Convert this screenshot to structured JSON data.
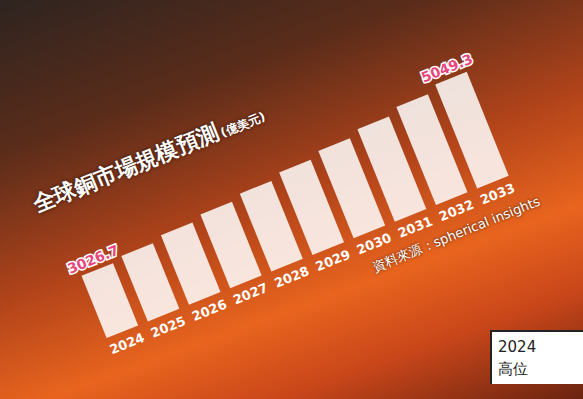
{
  "chart_data": {
    "type": "bar",
    "title": "全球銅市場規模預測",
    "subtitle": "(億美元)",
    "source": "資料來源：spherical insights",
    "annotations": [
      "2024",
      "高位"
    ],
    "categories": [
      "2024",
      "2025",
      "2026",
      "2027",
      "2028",
      "2029",
      "2030",
      "2031",
      "2032",
      "2033"
    ],
    "values": [
      3026.7,
      3190,
      3380,
      3580,
      3790,
      4010,
      4250,
      4500,
      4770,
      5049.3
    ],
    "value_labels": [
      "3026.7",
      null,
      null,
      null,
      null,
      null,
      null,
      null,
      null,
      "5049.3"
    ],
    "data_labels": true,
    "color": "#ffffff",
    "grid": false,
    "tick_labels": "x"
  }
}
